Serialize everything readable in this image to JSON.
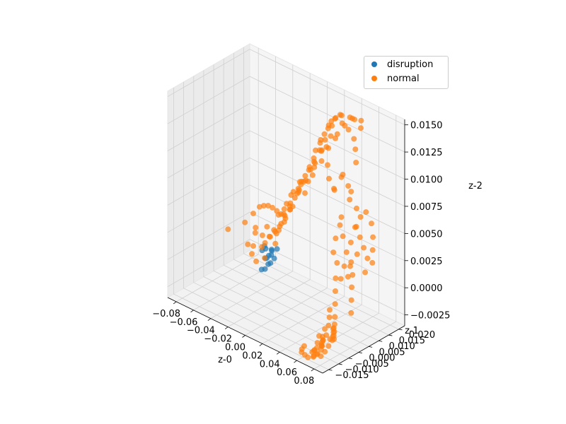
{
  "chart_data": {
    "type": "scatter",
    "projection": "3d",
    "xlabel": "z-0",
    "ylabel": "z-1",
    "zlabel": "z-2",
    "xlim": [
      -0.09,
      0.09
    ],
    "ylim": [
      -0.018,
      0.023
    ],
    "zlim": [
      -0.0035,
      0.0155
    ],
    "xticks": [
      "−0.08",
      "−0.06",
      "−0.04",
      "−0.02",
      "0.00",
      "0.02",
      "0.04",
      "0.06",
      "0.08"
    ],
    "xtick_values": [
      -0.08,
      -0.06,
      -0.04,
      -0.02,
      0.0,
      0.02,
      0.04,
      0.06,
      0.08
    ],
    "yticks": [
      "−0.015",
      "−0.010",
      "−0.005",
      "0.000",
      "0.005",
      "0.010",
      "0.015",
      "0.020"
    ],
    "ytick_values": [
      -0.015,
      -0.01,
      -0.005,
      0.0,
      0.005,
      0.01,
      0.015,
      0.02
    ],
    "zticks": [
      "−0.0025",
      "0.0000",
      "0.0025",
      "0.0050",
      "0.0075",
      "0.0100",
      "0.0125",
      "0.0150"
    ],
    "ztick_values": [
      -0.0025,
      0.0,
      0.0025,
      0.005,
      0.0075,
      0.01,
      0.0125,
      0.015
    ],
    "grid": true,
    "legend_position": "upper-right",
    "series": [
      {
        "name": "disruption",
        "color": "#1f77b4",
        "points": [
          [
            -0.046,
            0.012,
            -0.0005
          ],
          [
            -0.044,
            0.011,
            -0.0012
          ],
          [
            -0.042,
            0.01,
            -0.002
          ],
          [
            -0.04,
            0.011,
            -0.0008
          ],
          [
            -0.039,
            0.012,
            -0.0003
          ],
          [
            -0.047,
            0.013,
            -0.0015
          ],
          [
            -0.043,
            0.012,
            -0.0018
          ],
          [
            -0.041,
            0.013,
            -0.0006
          ],
          [
            -0.038,
            0.011,
            -0.0014
          ],
          [
            -0.045,
            0.011,
            -0.0001
          ],
          [
            -0.036,
            0.012,
            -0.001
          ],
          [
            -0.05,
            0.012,
            -0.0008
          ],
          [
            -0.046,
            0.01,
            -0.0022
          ],
          [
            -0.044,
            0.014,
            -0.0012
          ],
          [
            -0.035,
            0.013,
            -0.0002
          ]
        ]
      },
      {
        "name": "normal",
        "color": "#ff7f0e",
        "points": [
          [
            -0.085,
            0.01,
            0.0
          ],
          [
            -0.07,
            0.012,
            0.001
          ],
          [
            -0.065,
            0.014,
            0.0018
          ],
          [
            -0.06,
            0.015,
            0.0025
          ],
          [
            -0.055,
            0.015,
            0.0028
          ],
          [
            -0.05,
            0.015,
            0.003
          ],
          [
            -0.045,
            0.015,
            0.003
          ],
          [
            -0.04,
            0.015,
            0.0029
          ],
          [
            -0.035,
            0.015,
            0.0028
          ],
          [
            -0.03,
            0.015,
            0.0026
          ],
          [
            -0.062,
            0.01,
            -0.0005
          ],
          [
            -0.058,
            0.012,
            0.0005
          ],
          [
            -0.055,
            0.009,
            -0.001
          ],
          [
            -0.05,
            0.009,
            -0.0015
          ],
          [
            -0.048,
            0.011,
            -0.0003
          ],
          [
            -0.042,
            0.01,
            0.0004
          ],
          [
            -0.038,
            0.014,
            0.001
          ],
          [
            -0.035,
            0.012,
            0.0015
          ],
          [
            -0.032,
            0.013,
            0.002
          ],
          [
            -0.03,
            0.01,
            0.0008
          ],
          [
            -0.028,
            0.012,
            0.0025
          ],
          [
            -0.025,
            0.012,
            0.0035
          ],
          [
            -0.022,
            0.011,
            0.003
          ],
          [
            -0.02,
            0.013,
            0.004
          ],
          [
            -0.018,
            0.012,
            0.0045
          ],
          [
            -0.015,
            0.011,
            0.005
          ],
          [
            -0.012,
            0.012,
            0.0055
          ],
          [
            -0.01,
            0.013,
            0.006
          ],
          [
            -0.008,
            0.012,
            0.0065
          ],
          [
            -0.005,
            0.012,
            0.007
          ],
          [
            -0.002,
            0.011,
            0.0075
          ],
          [
            0.0,
            0.012,
            0.008
          ],
          [
            0.002,
            0.013,
            0.0085
          ],
          [
            0.005,
            0.012,
            0.009
          ],
          [
            0.008,
            0.013,
            0.0095
          ],
          [
            0.01,
            0.012,
            0.01
          ],
          [
            0.012,
            0.012,
            0.0108
          ],
          [
            0.015,
            0.013,
            0.0115
          ],
          [
            0.018,
            0.012,
            0.012
          ],
          [
            0.02,
            0.013,
            0.0125
          ],
          [
            0.022,
            0.014,
            0.013
          ],
          [
            0.025,
            0.013,
            0.0135
          ],
          [
            0.028,
            0.013,
            0.014
          ],
          [
            0.03,
            0.014,
            0.0142
          ],
          [
            0.033,
            0.013,
            0.0145
          ],
          [
            0.036,
            0.014,
            0.0148
          ],
          [
            0.04,
            0.013,
            0.015
          ],
          [
            0.045,
            0.015,
            0.0148
          ],
          [
            0.05,
            0.014,
            0.015
          ],
          [
            0.055,
            0.013,
            0.0152
          ],
          [
            0.058,
            0.015,
            0.015
          ],
          [
            0.06,
            0.014,
            0.0145
          ],
          [
            -0.01,
            0.01,
            0.005
          ],
          [
            -0.005,
            0.014,
            0.006
          ],
          [
            0.0,
            0.009,
            0.007
          ],
          [
            0.004,
            0.014,
            0.008
          ],
          [
            0.008,
            0.01,
            0.008
          ],
          [
            0.012,
            0.015,
            0.0095
          ],
          [
            0.016,
            0.01,
            0.01
          ],
          [
            0.02,
            0.015,
            0.011
          ],
          [
            0.024,
            0.01,
            0.0115
          ],
          [
            0.028,
            0.016,
            0.0125
          ],
          [
            0.032,
            0.011,
            0.013
          ],
          [
            0.026,
            0.012,
            0.01
          ],
          [
            0.03,
            0.011,
            0.009
          ],
          [
            0.034,
            0.012,
            0.008
          ],
          [
            0.038,
            0.01,
            0.0085
          ],
          [
            0.042,
            0.012,
            0.0095
          ],
          [
            0.046,
            0.011,
            0.01
          ],
          [
            0.05,
            0.012,
            0.009
          ],
          [
            0.054,
            0.011,
            0.008
          ],
          [
            0.058,
            0.01,
            0.009
          ],
          [
            0.062,
            0.011,
            0.0075
          ],
          [
            0.064,
            0.01,
            0.006
          ],
          [
            0.066,
            0.011,
            0.005
          ],
          [
            0.068,
            0.012,
            0.004
          ],
          [
            0.07,
            0.013,
            0.003
          ],
          [
            0.072,
            0.011,
            0.002
          ],
          [
            0.065,
            0.01,
            0.0035
          ],
          [
            0.06,
            0.009,
            0.0045
          ],
          [
            0.058,
            0.01,
            0.0025
          ],
          [
            0.055,
            0.012,
            0.001
          ],
          [
            0.05,
            0.013,
            0.0015
          ],
          [
            0.046,
            0.01,
            0.0005
          ],
          [
            0.044,
            0.009,
            0.002
          ],
          [
            0.042,
            0.008,
            0.003
          ],
          [
            0.04,
            0.01,
            0.004
          ],
          [
            0.052,
            0.007,
            0.006
          ],
          [
            0.056,
            0.006,
            0.007
          ],
          [
            0.06,
            0.005,
            0.0055
          ],
          [
            0.062,
            0.006,
            0.004
          ],
          [
            0.064,
            0.004,
            0.003
          ],
          [
            0.066,
            0.005,
            0.002
          ],
          [
            0.068,
            0.006,
            0.001
          ],
          [
            0.07,
            0.005,
            0.0
          ],
          [
            0.072,
            0.004,
            -0.001
          ],
          [
            0.054,
            0.004,
            0.0015
          ],
          [
            0.056,
            0.003,
            0.0005
          ],
          [
            0.058,
            0.002,
            -0.0005
          ],
          [
            0.06,
            0.001,
            -0.0015
          ],
          [
            0.062,
            0.0,
            -0.002
          ],
          [
            0.064,
            -0.001,
            -0.0025
          ],
          [
            0.066,
            -0.002,
            -0.003
          ],
          [
            0.068,
            -0.003,
            -0.0025
          ],
          [
            0.07,
            -0.004,
            -0.002
          ],
          [
            0.072,
            -0.005,
            -0.0015
          ],
          [
            0.074,
            -0.006,
            -0.002
          ],
          [
            0.06,
            -0.005,
            -0.003
          ],
          [
            0.062,
            -0.006,
            -0.0025
          ],
          [
            0.064,
            -0.007,
            -0.0028
          ],
          [
            0.066,
            -0.008,
            -0.003
          ],
          [
            0.068,
            -0.009,
            -0.0028
          ],
          [
            0.07,
            -0.01,
            -0.0025
          ],
          [
            0.072,
            -0.011,
            -0.0028
          ],
          [
            0.074,
            -0.01,
            -0.003
          ],
          [
            0.076,
            -0.009,
            -0.0025
          ],
          [
            0.078,
            -0.008,
            -0.002
          ],
          [
            0.058,
            -0.004,
            -0.0032
          ],
          [
            0.056,
            -0.006,
            -0.0033
          ],
          [
            0.06,
            -0.008,
            -0.0034
          ],
          [
            0.062,
            -0.01,
            -0.0033
          ],
          [
            0.064,
            -0.012,
            -0.0032
          ],
          [
            0.066,
            -0.012,
            -0.003
          ],
          [
            0.068,
            -0.013,
            -0.0033
          ],
          [
            0.07,
            -0.012,
            -0.0031
          ],
          [
            0.072,
            -0.013,
            -0.003
          ],
          [
            0.074,
            -0.012,
            -0.0032
          ],
          [
            0.065,
            -0.009,
            -0.002
          ],
          [
            0.067,
            -0.007,
            -0.0015
          ],
          [
            0.069,
            -0.006,
            -0.0012
          ],
          [
            0.071,
            -0.008,
            -0.0018
          ],
          [
            0.073,
            -0.007,
            -0.0022
          ],
          [
            0.075,
            -0.006,
            -0.0012
          ],
          [
            0.063,
            -0.003,
            -0.001
          ],
          [
            0.061,
            -0.002,
            -0.0005
          ],
          [
            0.05,
            -0.01,
            -0.0034
          ],
          [
            0.052,
            -0.012,
            -0.0034
          ],
          [
            0.054,
            -0.013,
            -0.0035
          ],
          [
            0.06,
            -0.014,
            -0.0034
          ],
          [
            0.066,
            -0.015,
            -0.0033
          ],
          [
            0.07,
            -0.014,
            -0.0032
          ],
          [
            0.058,
            0.012,
            0.0055
          ],
          [
            0.062,
            0.013,
            0.0065
          ],
          [
            0.066,
            0.014,
            0.007
          ],
          [
            0.07,
            0.015,
            0.006
          ],
          [
            0.074,
            0.014,
            0.005
          ],
          [
            0.076,
            0.013,
            0.004
          ],
          [
            0.078,
            0.012,
            0.003
          ],
          [
            -0.06,
            0.013,
            0.0008
          ],
          [
            -0.058,
            0.011,
            -0.0006
          ],
          [
            -0.052,
            0.013,
            0.0004
          ],
          [
            -0.049,
            0.014,
            0.0012
          ],
          [
            -0.044,
            0.013,
            0.0006
          ],
          [
            -0.04,
            0.009,
            -0.0008
          ],
          [
            -0.036,
            0.01,
            0.0012
          ],
          [
            -0.034,
            0.011,
            0.0018
          ],
          [
            -0.031,
            0.012,
            0.0032
          ],
          [
            -0.029,
            0.014,
            0.0036
          ],
          [
            -0.026,
            0.01,
            0.0022
          ],
          [
            -0.024,
            0.013,
            0.0044
          ],
          [
            -0.021,
            0.014,
            0.0052
          ],
          [
            -0.019,
            0.01,
            0.0038
          ],
          [
            -0.016,
            0.013,
            0.0058
          ],
          [
            -0.013,
            0.01,
            0.0046
          ],
          [
            -0.011,
            0.014,
            0.0068
          ],
          [
            -0.007,
            0.011,
            0.0062
          ],
          [
            -0.004,
            0.013,
            0.0072
          ],
          [
            0.003,
            0.011,
            0.0078
          ],
          [
            0.006,
            0.014,
            0.0088
          ],
          [
            0.011,
            0.01,
            0.0092
          ],
          [
            0.014,
            0.014,
            0.0106
          ],
          [
            0.019,
            0.011,
            0.0112
          ],
          [
            0.023,
            0.012,
            0.0122
          ],
          [
            0.027,
            0.011,
            0.0118
          ],
          [
            0.031,
            0.012,
            0.0138
          ],
          [
            0.035,
            0.012,
            0.0128
          ],
          [
            0.039,
            0.015,
            0.0138
          ],
          [
            0.043,
            0.012,
            0.0145
          ],
          [
            0.048,
            0.013,
            0.014
          ],
          [
            0.052,
            0.014,
            0.0132
          ],
          [
            0.056,
            0.013,
            0.0125
          ],
          [
            0.059,
            0.012,
            0.0115
          ]
        ]
      }
    ]
  }
}
